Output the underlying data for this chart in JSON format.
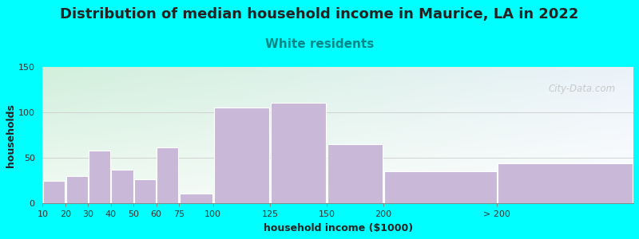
{
  "title": "Distribution of median household income in Maurice, LA in 2022",
  "subtitle": "White residents",
  "xlabel": "household income ($1000)",
  "ylabel": "households",
  "bar_labels": [
    "10",
    "20",
    "30",
    "40",
    "50",
    "60",
    "75",
    "100",
    "125",
    "150",
    "200",
    "> 200"
  ],
  "bar_values": [
    25,
    30,
    58,
    37,
    27,
    62,
    11,
    105,
    111,
    65,
    35,
    44
  ],
  "bar_lefts": [
    0,
    10,
    20,
    30,
    40,
    50,
    60,
    75,
    100,
    125,
    150,
    200
  ],
  "bar_widths": [
    10,
    10,
    10,
    10,
    10,
    10,
    15,
    25,
    25,
    25,
    50,
    60
  ],
  "bar_color": "#c9b8d8",
  "bar_edgecolor": "#ffffff",
  "ylim": [
    0,
    150
  ],
  "yticks": [
    0,
    50,
    100,
    150
  ],
  "xlim": [
    0,
    260
  ],
  "background_color": "#00ffff",
  "title_fontsize": 13,
  "subtitle_fontsize": 11,
  "subtitle_color": "#008888",
  "axis_label_fontsize": 9,
  "tick_label_fontsize": 8,
  "watermark": "City-Data.com"
}
